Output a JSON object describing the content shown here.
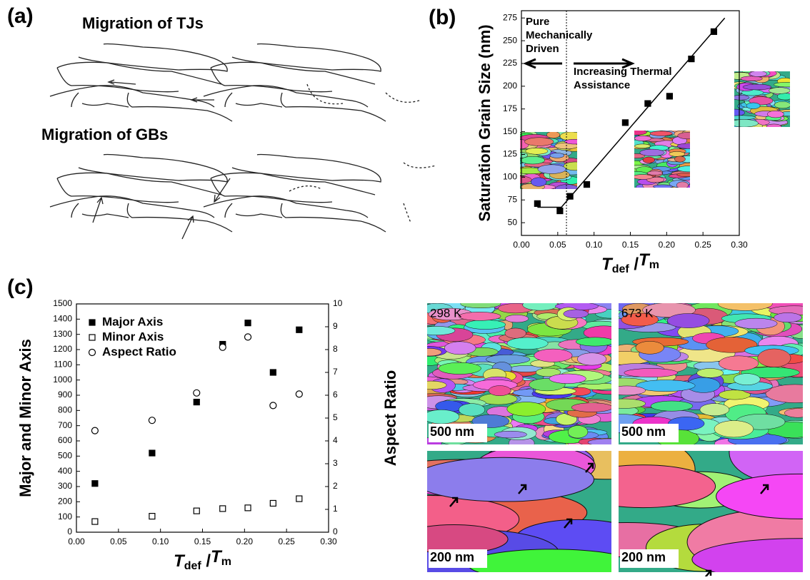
{
  "panel_a": {
    "label": "(a)",
    "titles": [
      "Migration of TJs",
      "Migration of GBs"
    ]
  },
  "micrographs": [
    {
      "temperature": "298 K",
      "scale": "500 nm"
    },
    {
      "temperature": "673 K",
      "scale": "500 nm"
    },
    {
      "scale": "200 nm"
    },
    {
      "scale": "200 nm"
    }
  ],
  "chart_data": [
    {
      "type": "scatter",
      "panel_label": "(b)",
      "ylabel": "Saturation Grain Size (nm)",
      "xlabel": [
        "T",
        "def",
        " /",
        "T",
        "m"
      ],
      "x": [
        0.022,
        0.053,
        0.067,
        0.09,
        0.143,
        0.174,
        0.204,
        0.234,
        0.265
      ],
      "series": [
        {
          "values": [
            71,
            63,
            79,
            92,
            160,
            181,
            189,
            230,
            260
          ],
          "color": "#000000",
          "marker": "filled-square"
        }
      ],
      "fit": {
        "x": [
          0.022,
          0.055,
          0.28
        ],
        "values": [
          67,
          67,
          275
        ]
      },
      "divider_x": 0.062,
      "annotations": [
        [
          "Pure",
          "Mechanically",
          "Driven"
        ],
        [
          "Increasing Thermal",
          "Assistance"
        ]
      ],
      "xlim": [
        0,
        0.3
      ],
      "xticks": [
        {
          "value": 0,
          "label": "0.00"
        },
        0.05,
        {
          "value": 0.1,
          "label": "0.10"
        },
        0.15,
        {
          "value": 0.2,
          "label": "0.20"
        },
        0.25,
        {
          "value": 0.3,
          "label": "0.30"
        }
      ],
      "ylim": [
        36,
        283
      ],
      "yticks": [
        50,
        75,
        100,
        125,
        150,
        175,
        200,
        225,
        250,
        275
      ]
    },
    {
      "type": "scatter",
      "panel_label": "(c)",
      "ylabel": "Major and Minor Axis",
      "y2label": "Aspect Ratio",
      "xlabel": [
        "T",
        "def",
        " /",
        "T",
        "m"
      ],
      "x": [
        0.022,
        0.09,
        0.143,
        0.174,
        0.204,
        0.234,
        0.265
      ],
      "series": [
        {
          "name": "Major Axis",
          "color": "#000000",
          "marker": "filled-square",
          "values": [
            320,
            520,
            855,
            1235,
            1375,
            1050,
            1330
          ]
        },
        {
          "name": "Minor Axis",
          "color": "#000000",
          "marker": "open-square",
          "values": [
            70,
            105,
            140,
            155,
            160,
            190,
            220
          ]
        },
        {
          "name": "Aspect Ratio",
          "color": "#000000",
          "marker": "open-circle",
          "axis": "y2",
          "values": [
            4.45,
            4.9,
            6.1,
            8.1,
            8.55,
            5.55,
            6.05
          ]
        }
      ],
      "legend": "upper-left",
      "xlim": [
        0,
        0.3
      ],
      "xticks": [
        {
          "value": 0,
          "label": "0.00"
        },
        0.05,
        {
          "value": 0.1,
          "label": "0.10"
        },
        0.15,
        {
          "value": 0.2,
          "label": "0.20"
        },
        0.25,
        {
          "value": 0.3,
          "label": "0.30"
        }
      ],
      "ylim": [
        0,
        1500
      ],
      "yticks": [
        0,
        100,
        200,
        300,
        400,
        500,
        600,
        700,
        800,
        900,
        1000,
        1100,
        1200,
        1300,
        1400,
        1500
      ],
      "y2lim": [
        0,
        10
      ],
      "y2ticks": [
        0,
        1,
        2,
        3,
        4,
        5,
        6,
        7,
        8,
        9,
        10
      ]
    }
  ]
}
